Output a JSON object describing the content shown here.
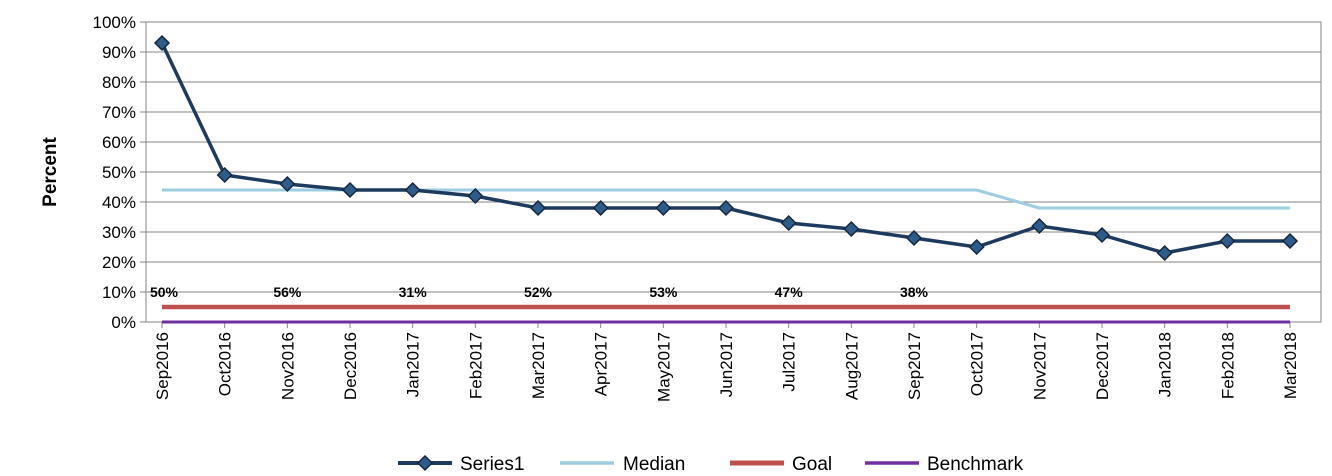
{
  "chart_data": {
    "type": "line",
    "ylabel": "Percent",
    "xlabel": "",
    "ylim": [
      0,
      100
    ],
    "y_ticks": [
      "0%",
      "10%",
      "20%",
      "30%",
      "40%",
      "50%",
      "60%",
      "70%",
      "80%",
      "90%",
      "100%"
    ],
    "grid": "horizontal",
    "legend_position": "bottom",
    "categories": [
      "Sep2016",
      "Oct2016",
      "Nov2016",
      "Dec2016",
      "Jan2017",
      "Feb2017",
      "Mar2017",
      "Apr2017",
      "May2017",
      "Jun2017",
      "Jul2017",
      "Aug2017",
      "Sep2017",
      "Oct2017",
      "Nov2017",
      "Dec2017",
      "Jan2018",
      "Feb2018",
      "Mar2018"
    ],
    "series": [
      {
        "name": "Series1",
        "color": "#1f3a5f",
        "marker": "diamond",
        "values": [
          93,
          49,
          46,
          44,
          44,
          42,
          38,
          38,
          38,
          38,
          33,
          31,
          28,
          25,
          32,
          29,
          23,
          27,
          27
        ]
      },
      {
        "name": "Median",
        "color": "#9dcde0",
        "marker": "none",
        "values": [
          44,
          44,
          44,
          44,
          44,
          44,
          44,
          44,
          44,
          44,
          44,
          44,
          44,
          44,
          38,
          38,
          38,
          38,
          38
        ]
      },
      {
        "name": "Goal",
        "color": "#c0504d",
        "marker": "none",
        "values": [
          5,
          5,
          5,
          5,
          5,
          5,
          5,
          5,
          5,
          5,
          5,
          5,
          5,
          5,
          5,
          5,
          5,
          5,
          5
        ]
      },
      {
        "name": "Benchmark",
        "color": "#7030a0",
        "marker": "none",
        "values": [
          0,
          0,
          0,
          0,
          0,
          0,
          0,
          0,
          0,
          0,
          0,
          0,
          0,
          0,
          0,
          0,
          0,
          0,
          0
        ]
      }
    ],
    "annotations": [
      {
        "text": "50%",
        "category": "Sep2016",
        "y": 10
      },
      {
        "text": "56%",
        "category": "Nov2016",
        "y": 10
      },
      {
        "text": "31%",
        "category": "Jan2017",
        "y": 10
      },
      {
        "text": "52%",
        "category": "Mar2017",
        "y": 10
      },
      {
        "text": "53%",
        "category": "May2017",
        "y": 10
      },
      {
        "text": "47%",
        "category": "Jul2017",
        "y": 10
      },
      {
        "text": "38%",
        "category": "Sep2017",
        "y": 10
      }
    ]
  }
}
